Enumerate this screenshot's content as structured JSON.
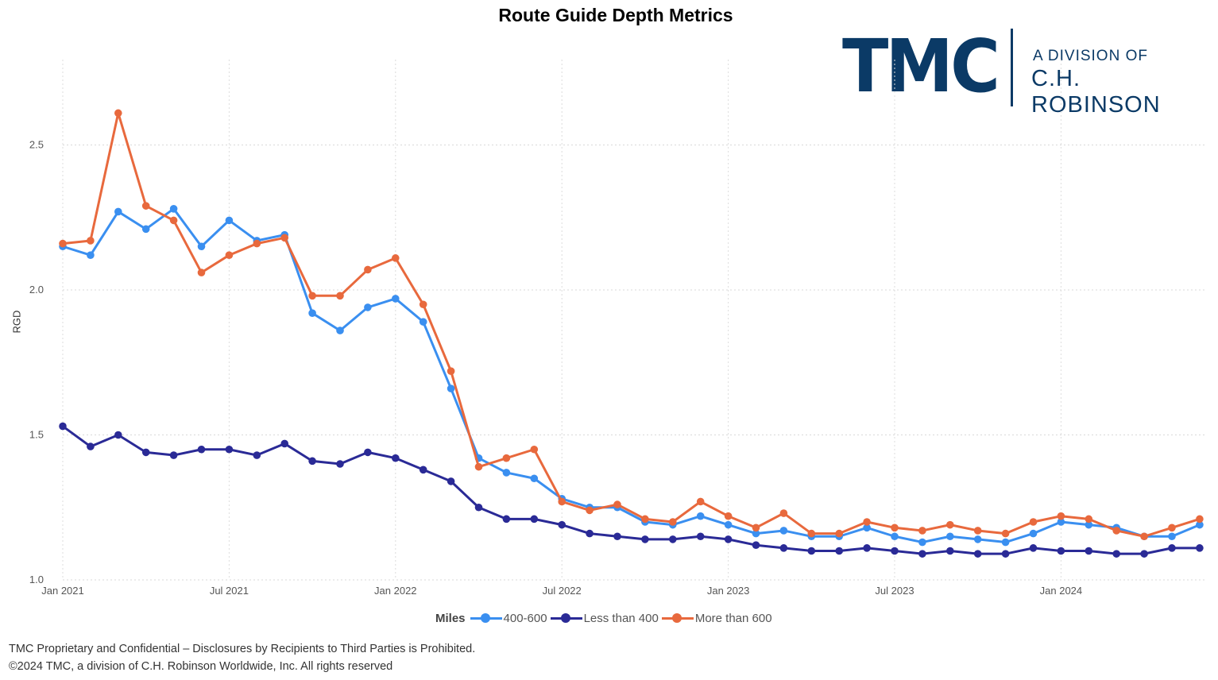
{
  "title": "Route Guide Depth Metrics",
  "logo": {
    "brand": "TMC",
    "line1": "A DIVISION OF",
    "line2": "C.H. ROBINSON",
    "color": "#0b3a66"
  },
  "legend": {
    "title": "Miles",
    "items": [
      "400-600",
      "Less than 400",
      "More than 600"
    ]
  },
  "footer": {
    "line1": "TMC Proprietary and Confidential – Disclosures by Recipients to Third Parties is Prohibited.",
    "line2": "©2024 TMC, a division of C.H. Robinson Worldwide, Inc. All rights reserved"
  },
  "chart_data": {
    "type": "line",
    "title": "Route Guide Depth Metrics",
    "xlabel": "",
    "ylabel": "RGD",
    "ylim": [
      1.0,
      2.75
    ],
    "yticks": [
      1.0,
      1.5,
      2.0,
      2.5
    ],
    "ytick_labels": [
      "1.0",
      "1.5",
      "2.0",
      "2.5"
    ],
    "xticks": [
      "Jan 2021",
      "Jul 2021",
      "Jan 2022",
      "Jul 2022",
      "Jan 2023",
      "Jul 2023",
      "Jan 2024"
    ],
    "grid": true,
    "legend_position": "bottom",
    "x": [
      "2021-01",
      "2021-02",
      "2021-03",
      "2021-04",
      "2021-05",
      "2021-06",
      "2021-07",
      "2021-08",
      "2021-09",
      "2021-10",
      "2021-11",
      "2021-12",
      "2022-01",
      "2022-02",
      "2022-03",
      "2022-04",
      "2022-05",
      "2022-06",
      "2022-07",
      "2022-08",
      "2022-09",
      "2022-10",
      "2022-11",
      "2022-12",
      "2023-01",
      "2023-02",
      "2023-03",
      "2023-04",
      "2023-05",
      "2023-06",
      "2023-07",
      "2023-08",
      "2023-09",
      "2023-10",
      "2023-11",
      "2023-12",
      "2024-01",
      "2024-02",
      "2024-03",
      "2024-04",
      "2024-05",
      "2024-06"
    ],
    "series": [
      {
        "name": "400-600",
        "color": "#3a8ff0",
        "values": [
          2.15,
          2.12,
          2.27,
          2.21,
          2.28,
          2.15,
          2.24,
          2.17,
          2.19,
          1.92,
          1.86,
          1.94,
          1.97,
          1.89,
          1.66,
          1.42,
          1.37,
          1.35,
          1.28,
          1.25,
          1.25,
          1.2,
          1.19,
          1.22,
          1.19,
          1.16,
          1.17,
          1.15,
          1.15,
          1.18,
          1.15,
          1.13,
          1.15,
          1.14,
          1.13,
          1.16,
          1.2,
          1.19,
          1.18,
          1.15,
          1.15,
          1.19
        ]
      },
      {
        "name": "Less than 400",
        "color": "#2a2a96",
        "values": [
          1.53,
          1.46,
          1.5,
          1.44,
          1.43,
          1.45,
          1.45,
          1.43,
          1.47,
          1.41,
          1.4,
          1.44,
          1.42,
          1.38,
          1.34,
          1.25,
          1.21,
          1.21,
          1.19,
          1.16,
          1.15,
          1.14,
          1.14,
          1.15,
          1.14,
          1.12,
          1.11,
          1.1,
          1.1,
          1.11,
          1.1,
          1.09,
          1.1,
          1.09,
          1.09,
          1.11,
          1.1,
          1.1,
          1.09,
          1.09,
          1.11,
          1.11
        ]
      },
      {
        "name": "More than 600",
        "color": "#e8693d",
        "values": [
          2.16,
          2.17,
          2.61,
          2.29,
          2.24,
          2.06,
          2.12,
          2.16,
          2.18,
          1.98,
          1.98,
          2.07,
          2.11,
          1.95,
          1.72,
          1.39,
          1.42,
          1.45,
          1.27,
          1.24,
          1.26,
          1.21,
          1.2,
          1.27,
          1.22,
          1.18,
          1.23,
          1.16,
          1.16,
          1.2,
          1.18,
          1.17,
          1.19,
          1.17,
          1.16,
          1.2,
          1.22,
          1.21,
          1.17,
          1.15,
          1.18,
          1.21
        ]
      }
    ]
  }
}
